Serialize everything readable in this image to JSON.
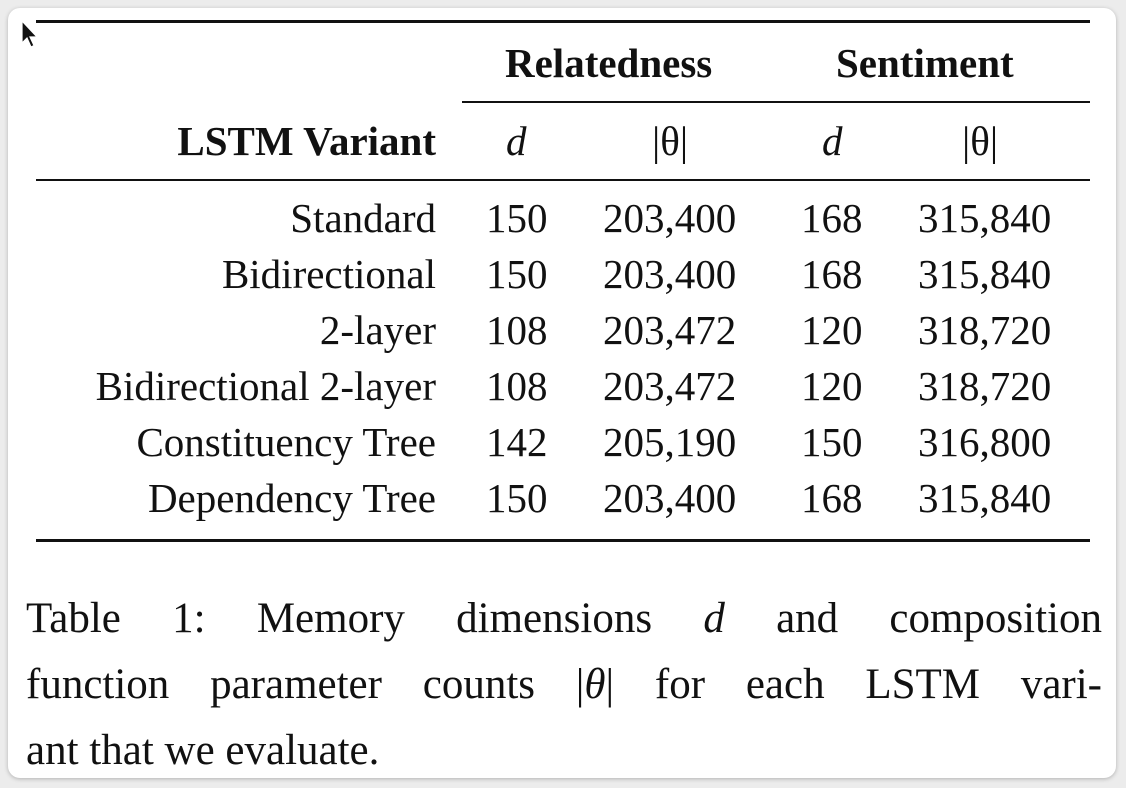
{
  "table": {
    "group_headers": [
      "Relatedness",
      "Sentiment"
    ],
    "variant_header": "LSTM Variant",
    "sub_headers": [
      "d",
      "|θ|",
      "d",
      "|θ|"
    ],
    "rows": [
      {
        "variant": "Standard",
        "rel_d": "150",
        "rel_theta": "203,400",
        "sent_d": "168",
        "sent_theta": "315,840"
      },
      {
        "variant": "Bidirectional",
        "rel_d": "150",
        "rel_theta": "203,400",
        "sent_d": "168",
        "sent_theta": "315,840"
      },
      {
        "variant": "2-layer",
        "rel_d": "108",
        "rel_theta": "203,472",
        "sent_d": "120",
        "sent_theta": "318,720"
      },
      {
        "variant": "Bidirectional 2-layer",
        "rel_d": "108",
        "rel_theta": "203,472",
        "sent_d": "120",
        "sent_theta": "318,720"
      },
      {
        "variant": "Constituency Tree",
        "rel_d": "142",
        "rel_theta": "205,190",
        "sent_d": "150",
        "sent_theta": "316,800"
      },
      {
        "variant": "Dependency Tree",
        "rel_d": "150",
        "rel_theta": "203,400",
        "sent_d": "168",
        "sent_theta": "315,840"
      }
    ]
  },
  "caption": {
    "line1_a": "Table 1: Memory dimensions ",
    "line1_var": "d",
    "line1_b": " and composition",
    "line2_a": "function parameter counts |",
    "line2_var": "θ",
    "line2_b": "| for each LSTM vari-",
    "line3": "ant that we evaluate."
  }
}
